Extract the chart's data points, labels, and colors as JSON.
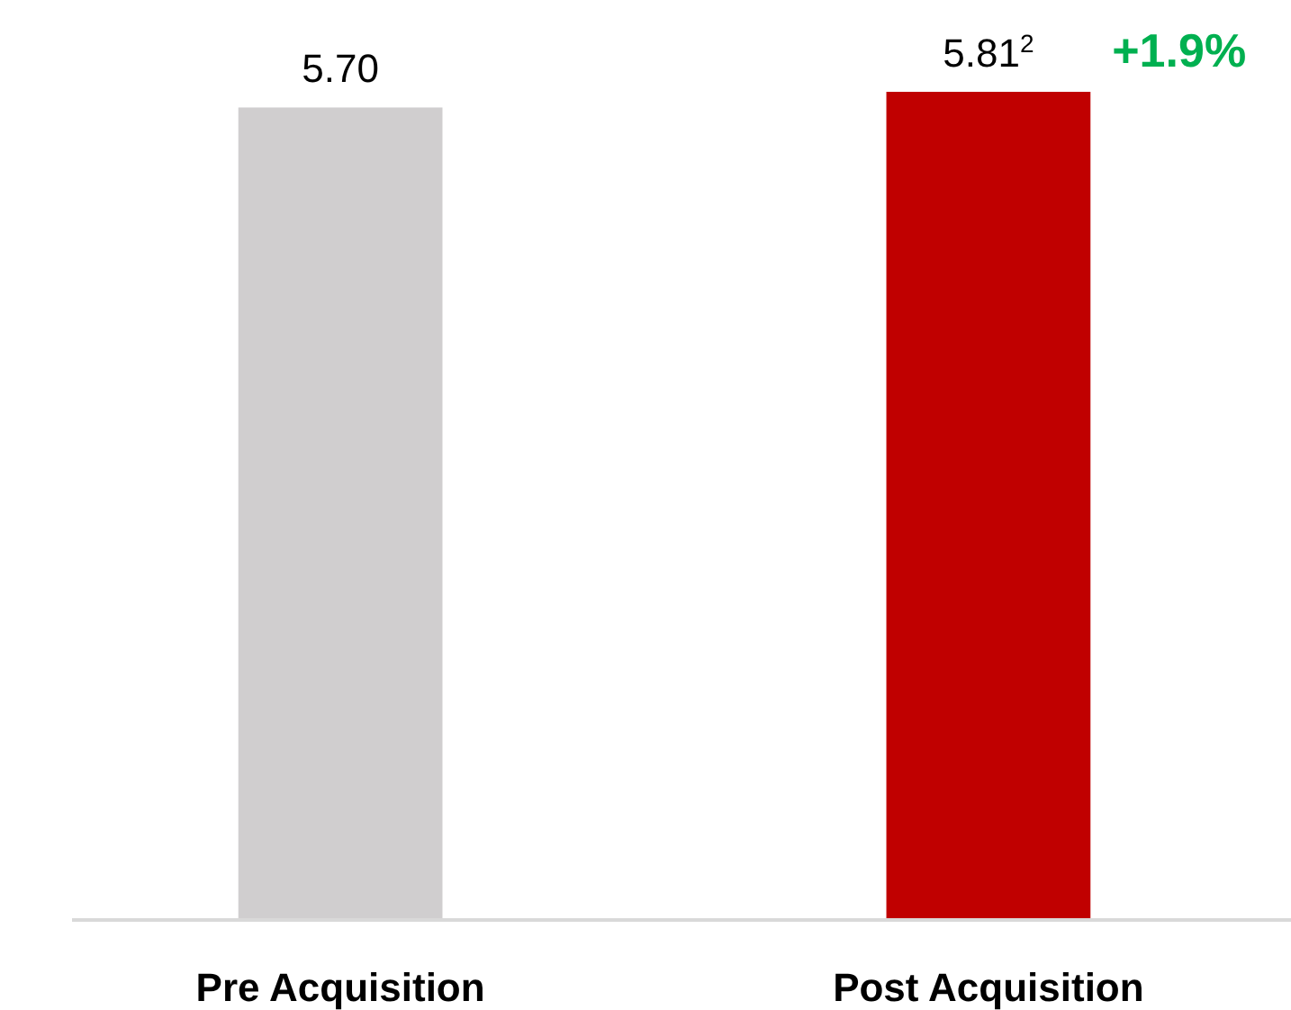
{
  "chart_data": {
    "type": "bar",
    "categories": [
      "Pre Acquisition",
      "Post Acquisition"
    ],
    "values": [
      5.7,
      5.81
    ],
    "colors": [
      "#d0cecf",
      "#c00000"
    ],
    "value_labels": [
      "5.70",
      "5.81$^{2}$"
    ],
    "annotations": [
      {
        "text": "+1.9%",
        "x": "Post Acquisition",
        "y": 5.81
      }
    ]
  }
}
